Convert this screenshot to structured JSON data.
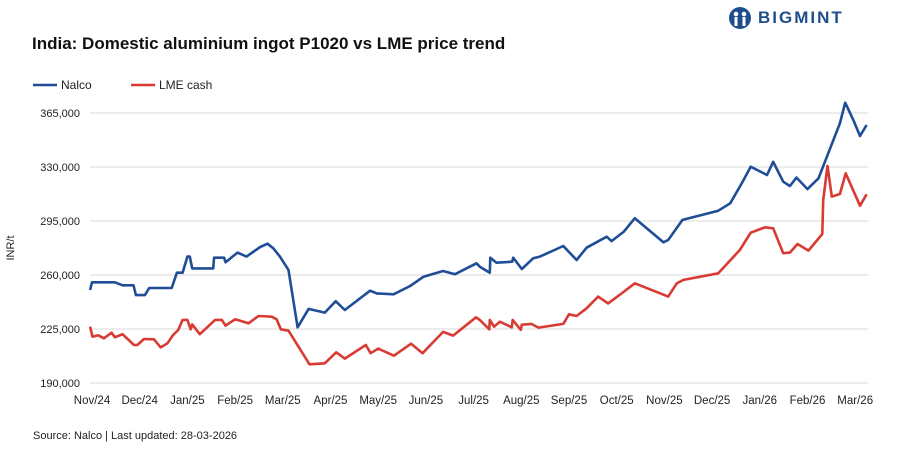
{
  "logo": {
    "text": "BIGMINT"
  },
  "source": "Source: Nalco | Last updated: 28-03-2026",
  "chart_data": {
    "type": "line",
    "title": "India: Domestic aluminium ingot P1020 vs LME price trend",
    "xlabel": "",
    "ylabel": "INR/t",
    "ylim": [
      190000,
      365000
    ],
    "yticks": [
      190000,
      225000,
      260000,
      295000,
      330000,
      365000
    ],
    "ytick_labels": [
      "190,000",
      "225,000",
      "260,000",
      "295,000",
      "330,000",
      "365,000"
    ],
    "xtick_labels": [
      "Nov/24",
      "Dec/24",
      "Jan/25",
      "Feb/25",
      "Mar/25",
      "Apr/25",
      "May/25",
      "Jun/25",
      "Jul/25",
      "Aug/25",
      "Sep/25",
      "Oct/25",
      "Nov/25",
      "Dec/25",
      "Jan/26",
      "Feb/26",
      "Mar/26"
    ],
    "x_unit": "months since Nov/24",
    "grid": "horizontal",
    "legend": "top-left",
    "series": [
      {
        "name": "Nalco",
        "color": "#1f4e96",
        "x": [
          -0.04,
          0,
          0.48,
          0.64,
          0.87,
          0.92,
          1.11,
          1.2,
          1.67,
          1.78,
          1.9,
          2,
          2.05,
          2.1,
          2.54,
          2.56,
          2.77,
          2.8,
          3.05,
          3.24,
          3.52,
          3.68,
          3.8,
          3.94,
          4.12,
          4.31,
          4.54,
          4.88,
          5.11,
          5.3,
          5.83,
          5.97,
          6.32,
          6.67,
          6.95,
          7.36,
          7.61,
          8.06,
          8.13,
          8.34,
          8.35,
          8.48,
          8.81,
          8.83,
          9.01,
          9.25,
          9.39,
          9.88,
          10.16,
          10.37,
          10.79,
          10.89,
          11.15,
          11.38,
          11.98,
          12.08,
          12.38,
          13.13,
          13.38,
          13.62,
          13.81,
          14.15,
          14.28,
          14.49,
          14.63,
          14.77,
          15,
          15.23,
          15.68,
          15.79,
          15.96,
          16.1,
          16.24
        ],
        "y": [
          250300,
          255300,
          255300,
          253300,
          253300,
          247000,
          247000,
          251600,
          251600,
          261500,
          261500,
          271900,
          271900,
          264300,
          264300,
          271200,
          271200,
          268200,
          274500,
          271900,
          278000,
          280300,
          277300,
          271900,
          263200,
          226100,
          238000,
          235600,
          243000,
          237300,
          249800,
          248100,
          247500,
          252900,
          258900,
          262600,
          260500,
          267600,
          265400,
          261500,
          271200,
          268000,
          268600,
          271200,
          263900,
          270800,
          271900,
          278800,
          269700,
          277700,
          284800,
          282000,
          288100,
          296800,
          281200,
          282700,
          295700,
          301700,
          306500,
          319400,
          330200,
          324800,
          333400,
          320500,
          317700,
          323100,
          315700,
          322700,
          358300,
          371700,
          360500,
          350100,
          357200
        ]
      },
      {
        "name": "LME cash",
        "color": "#d93a32",
        "x": [
          -0.04,
          0.01,
          0.13,
          0.25,
          0.41,
          0.48,
          0.64,
          0.88,
          0.95,
          1.09,
          1.3,
          1.44,
          1.58,
          1.7,
          1.81,
          1.9,
          2,
          2.07,
          2.1,
          2.26,
          2.58,
          2.72,
          2.8,
          3,
          3.28,
          3.49,
          3.77,
          3.87,
          3.96,
          4.12,
          4.56,
          4.88,
          5.12,
          5.3,
          5.74,
          5.84,
          6,
          6.33,
          6.69,
          6.93,
          7.36,
          7.57,
          8.05,
          8.13,
          8.33,
          8.34,
          8.43,
          8.55,
          8.8,
          8.82,
          8.99,
          9.01,
          9.21,
          9.36,
          9.88,
          10,
          10.16,
          10.37,
          10.61,
          10.82,
          11.17,
          11.38,
          12.08,
          12.26,
          12.4,
          13.13,
          13.58,
          13.81,
          14.11,
          14.28,
          14.49,
          14.63,
          14.79,
          15.02,
          15.31,
          15.33,
          15.42,
          15.51,
          15.68,
          15.8,
          15.94,
          16.1,
          16.24
        ],
        "y": [
          226500,
          220000,
          220900,
          219000,
          222600,
          219600,
          221600,
          214600,
          214600,
          218500,
          218300,
          213100,
          215700,
          221100,
          224400,
          230900,
          230900,
          224800,
          228000,
          221600,
          230900,
          230900,
          227200,
          231300,
          228700,
          233400,
          233000,
          231300,
          224800,
          223900,
          202100,
          202800,
          209900,
          205800,
          214600,
          209300,
          212300,
          207700,
          215500,
          209300,
          223100,
          220700,
          232600,
          230900,
          224800,
          230900,
          226500,
          229700,
          226100,
          230900,
          224400,
          227800,
          228300,
          225900,
          228300,
          234500,
          233400,
          238400,
          246000,
          241600,
          249600,
          254600,
          246000,
          254600,
          256800,
          261100,
          276200,
          287400,
          290900,
          290300,
          274100,
          274500,
          280100,
          275800,
          286600,
          308600,
          330700,
          310800,
          312500,
          325900,
          316200,
          304900,
          312300
        ]
      }
    ]
  }
}
